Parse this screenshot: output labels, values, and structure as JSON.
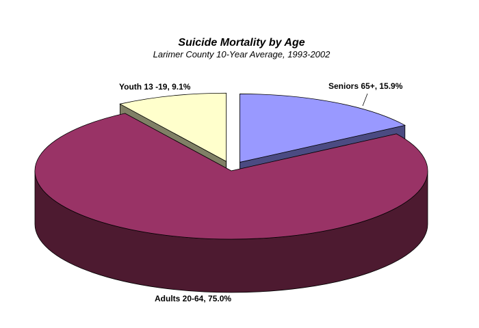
{
  "chart_data": {
    "type": "pie",
    "title": "Suicide Mortality by Age",
    "subtitle": "Larimer County 10-Year Average, 1993-2002",
    "slices": [
      {
        "label": "Seniors 65+, 15.9%",
        "value": 15.9,
        "top_color": "#9999ff",
        "side_color": "#4b4b82"
      },
      {
        "label": "Adults 20-64, 75.0%",
        "value": 75.0,
        "top_color": "#993366",
        "side_color": "#4d1a30"
      },
      {
        "label": "Youth 13 -19, 9.1%",
        "value": 9.1,
        "top_color": "#ffffcc",
        "side_color": "#808066"
      }
    ],
    "exploded": [
      "Seniors 65+, 15.9%",
      "Youth 13 -19, 9.1%"
    ],
    "style": "3d-exploded"
  }
}
